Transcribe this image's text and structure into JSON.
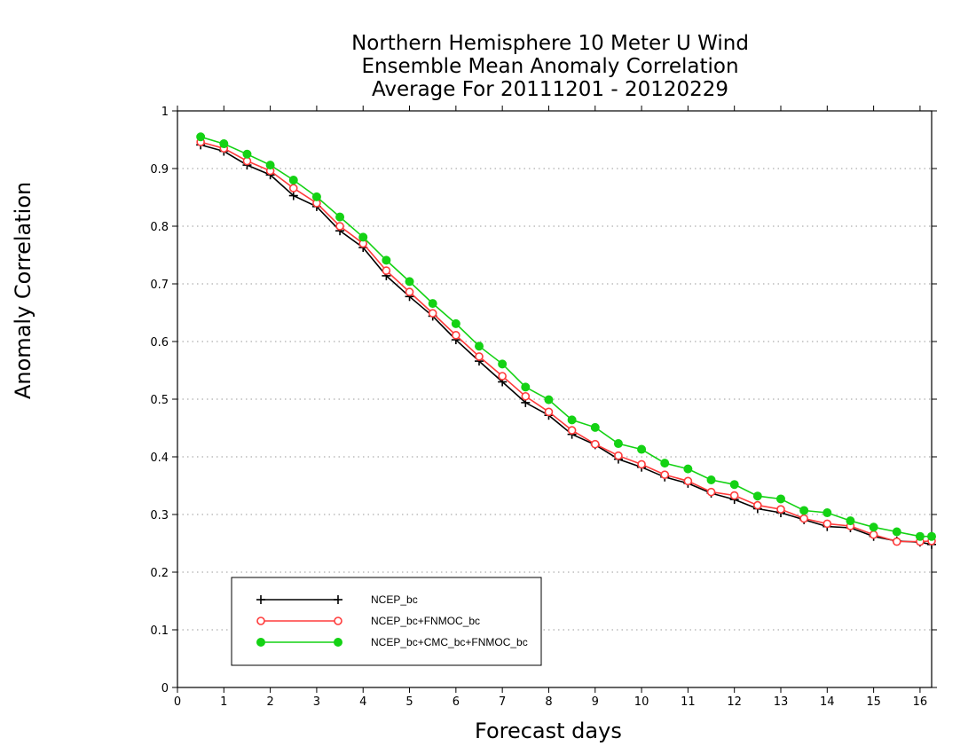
{
  "chart_data": {
    "type": "line",
    "title": [
      "Northern Hemisphere 10 Meter U Wind",
      "Ensemble Mean Anomaly Correlation",
      "Average For 20111201 - 20120229"
    ],
    "xlabel": "Forecast days",
    "ylabel": "Anomaly Correlation",
    "xlim": [
      0,
      16.25
    ],
    "ylim": [
      0,
      1
    ],
    "xticks": [
      "0",
      "1",
      "2",
      "3",
      "4",
      "5",
      "6",
      "7",
      "8",
      "9",
      "10",
      "11",
      "12",
      "13",
      "14",
      "15",
      "16"
    ],
    "yticks": [
      "0",
      "0.1",
      "0.2",
      "0.3",
      "0.4",
      "0.5",
      "0.6",
      "0.7",
      "0.8",
      "0.9",
      "1"
    ],
    "grid": "horizontal dotted",
    "legend_position": "lower-left",
    "x": [
      0.5,
      1,
      1.5,
      2,
      2.5,
      3,
      3.5,
      4,
      4.5,
      5,
      5.5,
      6,
      6.5,
      7,
      7.5,
      8,
      8.5,
      9,
      9.5,
      10,
      10.5,
      11,
      11.5,
      12,
      12.5,
      13,
      13.5,
      14,
      14.5,
      15,
      15.5,
      16,
      16.25
    ],
    "series": [
      {
        "name": "NCEP_bc",
        "color": "#000000",
        "marker": "plus",
        "values": [
          0.941,
          0.93,
          0.906,
          0.889,
          0.853,
          0.834,
          0.792,
          0.763,
          0.714,
          0.678,
          0.644,
          0.603,
          0.566,
          0.53,
          0.494,
          0.472,
          0.439,
          0.421,
          0.396,
          0.382,
          0.365,
          0.354,
          0.337,
          0.326,
          0.31,
          0.303,
          0.291,
          0.279,
          0.277,
          0.262,
          0.254,
          0.252,
          0.248
        ]
      },
      {
        "name": "NCEP_bc+FNMOC_bc",
        "color": "#ff3b3b",
        "marker": "open-circle",
        "values": [
          0.946,
          0.935,
          0.913,
          0.896,
          0.866,
          0.84,
          0.8,
          0.77,
          0.723,
          0.686,
          0.649,
          0.611,
          0.574,
          0.54,
          0.505,
          0.478,
          0.446,
          0.422,
          0.402,
          0.387,
          0.369,
          0.358,
          0.339,
          0.333,
          0.316,
          0.309,
          0.293,
          0.284,
          0.28,
          0.265,
          0.253,
          0.253,
          0.254
        ]
      },
      {
        "name": "NCEP_bc+CMC_bc+FNMOC_bc",
        "color": "#14d214",
        "marker": "filled-circle",
        "values": [
          0.955,
          0.943,
          0.925,
          0.906,
          0.88,
          0.851,
          0.816,
          0.781,
          0.741,
          0.704,
          0.666,
          0.631,
          0.592,
          0.561,
          0.521,
          0.499,
          0.464,
          0.451,
          0.423,
          0.413,
          0.389,
          0.379,
          0.36,
          0.352,
          0.332,
          0.327,
          0.307,
          0.303,
          0.289,
          0.278,
          0.27,
          0.262,
          0.262
        ]
      }
    ]
  }
}
